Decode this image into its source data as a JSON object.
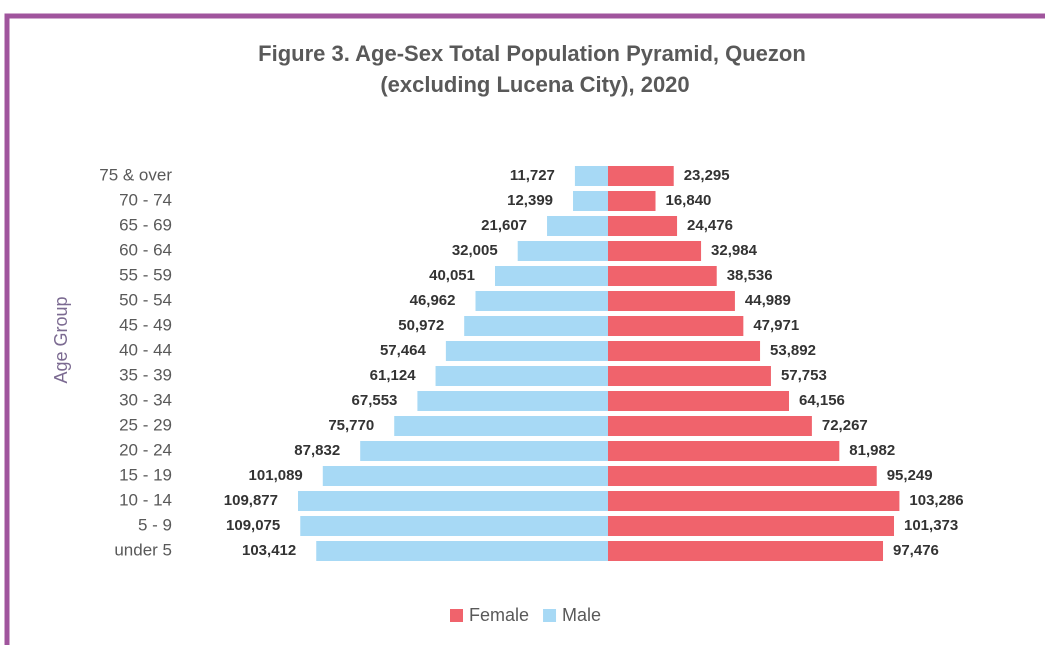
{
  "chart_data": {
    "type": "pyramid",
    "title": "Figure 3. Age-Sex Total Population Pyramid, Quezon",
    "subtitle": "(excluding Lucena City), 2020",
    "y_label": "Age Group",
    "categories": [
      "75 & over",
      "70 - 74",
      "65 - 69",
      "60 - 64",
      "55 - 59",
      "50 - 54",
      "45 - 49",
      "40 - 44",
      "35 - 39",
      "30 - 34",
      "25 - 29",
      "20 - 24",
      "15 - 19",
      "10 - 14",
      "5 - 9",
      "under 5"
    ],
    "series": [
      {
        "name": "Female",
        "color": "#f0636c",
        "values": [
          23295,
          16840,
          24476,
          32984,
          38536,
          44989,
          47971,
          53892,
          57753,
          64156,
          72267,
          81982,
          95249,
          103286,
          101373,
          97476
        ],
        "value_labels": [
          "23,295",
          "16,840",
          "24,476",
          "32,984",
          "38,536",
          "44,989",
          "47,971",
          "53,892",
          "57,753",
          "64,156",
          "72,267",
          "81,982",
          "95,249",
          "103,286",
          "101,373",
          "97,476"
        ]
      },
      {
        "name": "Male",
        "color": "#a7d9f5",
        "values": [
          11727,
          12399,
          21607,
          32005,
          40051,
          46962,
          50972,
          57464,
          61124,
          67553,
          75770,
          87832,
          101089,
          109877,
          109075,
          103412
        ],
        "value_labels": [
          "11,727",
          "12,399",
          "21,607",
          "32,005",
          "40,051",
          "46,962",
          "50,972",
          "57,464",
          "61,124",
          "67,553",
          "75,770",
          "87,832",
          "101,089",
          "109,877",
          "109,075",
          "103,412"
        ]
      }
    ],
    "legend": "bottom"
  }
}
